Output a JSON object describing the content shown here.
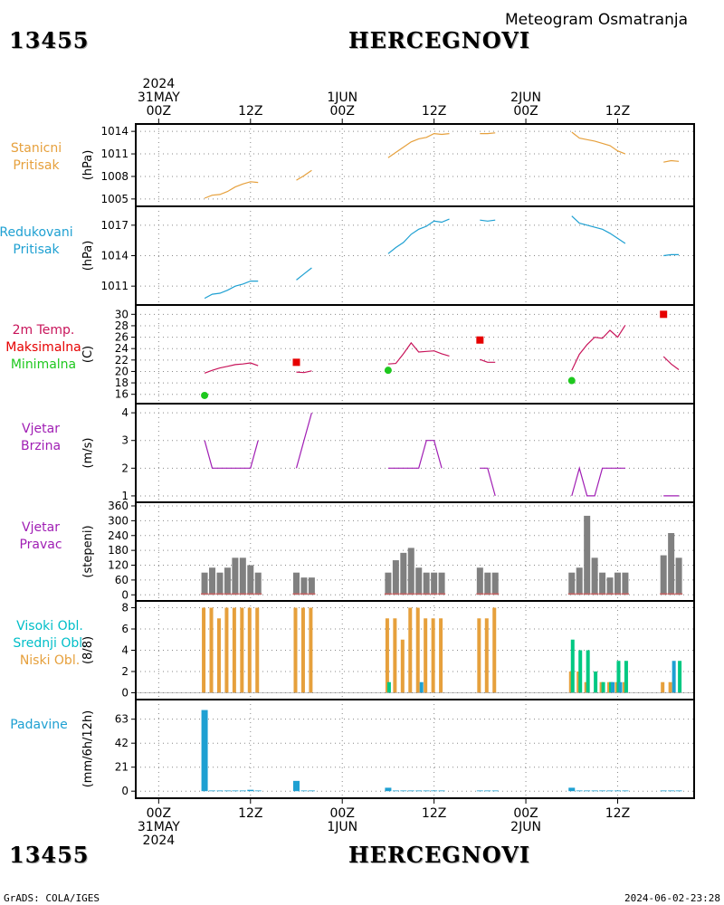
{
  "header": {
    "station_id": "13455",
    "station_name": "HERCEGNOVI",
    "subtitle": "Meteogram Osmatranja"
  },
  "footer": {
    "station_id": "13455",
    "station_name": "HERCEGNOVI",
    "left": "GrADS: COLA/IGES",
    "right": "2024-06-02-23:28"
  },
  "time_axis": {
    "ticks_top": [
      {
        "t": 0,
        "lines": [
          "2024",
          "31MAY",
          "00Z"
        ]
      },
      {
        "t": 12,
        "lines": [
          "12Z"
        ]
      },
      {
        "t": 24,
        "lines": [
          "1JUN",
          "00Z"
        ]
      },
      {
        "t": 36,
        "lines": [
          "12Z"
        ]
      },
      {
        "t": 48,
        "lines": [
          "2JUN",
          "00Z"
        ]
      },
      {
        "t": 60,
        "lines": [
          "12Z"
        ]
      }
    ],
    "ticks_bottom": [
      {
        "t": 0,
        "lines": [
          "00Z",
          "31MAY",
          "2024"
        ]
      },
      {
        "t": 12,
        "lines": [
          "12Z"
        ]
      },
      {
        "t": 24,
        "lines": [
          "00Z",
          "1JUN"
        ]
      },
      {
        "t": 36,
        "lines": [
          "12Z"
        ]
      },
      {
        "t": 48,
        "lines": [
          "00Z",
          "2JUN"
        ]
      },
      {
        "t": 60,
        "lines": [
          "12Z"
        ]
      }
    ],
    "range_hours": [
      -3,
      70
    ]
  },
  "panel_labels": {
    "pressure_station": {
      "lines": [
        "Stanicni",
        "Pritisak"
      ],
      "color": "#e6a03c"
    },
    "pressure_reduced": {
      "lines": [
        "Redukovani",
        "Pritisak"
      ],
      "color": "#1ea0d2"
    },
    "temperature": {
      "lines": [
        {
          "text": "2m Temp.",
          "color": "#c8145a"
        },
        {
          "text": "Maksimalna",
          "color": "#e60000"
        },
        {
          "text": "Minimalna",
          "color": "#1ec81e"
        }
      ]
    },
    "wind_speed": {
      "lines": [
        "Vjetar",
        "Brzina"
      ],
      "color": "#a01eb4"
    },
    "wind_direction": {
      "lines": [
        "Vjetar",
        "Pravac"
      ],
      "color": "#a01eb4"
    },
    "clouds": {
      "lines": [
        {
          "text": "Visoki Obl.",
          "color": "#00bec8"
        },
        {
          "text": "Srednji Obl.",
          "color": "#00c882"
        },
        {
          "text": "Niski Obl.",
          "color": "#e6a03c"
        }
      ]
    },
    "precip": {
      "lines": [
        "Padavine"
      ],
      "color": "#1ea0d2"
    }
  },
  "chart_data": [
    {
      "id": "pressure_station",
      "type": "line",
      "ylabel": "(hPa)",
      "ylim": [
        1004.5,
        1014.5
      ],
      "yticks": [
        1005,
        1008,
        1011,
        1014
      ],
      "color": "#e6a03c",
      "segments": [
        [
          [
            6,
            1005.1
          ],
          [
            7,
            1005.5
          ],
          [
            8,
            1005.6
          ],
          [
            9,
            1006.0
          ],
          [
            10,
            1006.6
          ],
          [
            11,
            1007.0
          ],
          [
            12,
            1007.3
          ],
          [
            13,
            1007.2
          ]
        ],
        [
          [
            18,
            1007.5
          ],
          [
            19,
            1008.1
          ],
          [
            20,
            1008.8
          ]
        ],
        [
          [
            30,
            1010.5
          ],
          [
            31,
            1011.2
          ],
          [
            32,
            1011.9
          ],
          [
            33,
            1012.6
          ],
          [
            34,
            1013.0
          ],
          [
            35,
            1013.2
          ],
          [
            36,
            1013.7
          ],
          [
            37,
            1013.6
          ],
          [
            38,
            1013.7
          ]
        ],
        [
          [
            42,
            1013.7
          ],
          [
            43,
            1013.7
          ],
          [
            44,
            1013.8
          ]
        ],
        [
          [
            54,
            1013.9
          ],
          [
            55,
            1013.1
          ],
          [
            56,
            1012.9
          ],
          [
            57,
            1012.7
          ],
          [
            58,
            1012.4
          ],
          [
            59,
            1012.1
          ],
          [
            60,
            1011.4
          ],
          [
            61,
            1011.0
          ]
        ],
        [
          [
            66,
            1009.9
          ],
          [
            67,
            1010.1
          ],
          [
            68,
            1010.0
          ]
        ]
      ]
    },
    {
      "id": "pressure_reduced",
      "type": "line",
      "ylabel": "(hPa)",
      "ylim": [
        1009.5,
        1018.5
      ],
      "yticks": [
        1011,
        1014,
        1017
      ],
      "color": "#1ea0d2",
      "segments": [
        [
          [
            6,
            1009.8
          ],
          [
            7,
            1010.2
          ],
          [
            8,
            1010.3
          ],
          [
            9,
            1010.6
          ],
          [
            10,
            1011.0
          ],
          [
            11,
            1011.2
          ],
          [
            12,
            1011.5
          ],
          [
            13,
            1011.5
          ]
        ],
        [
          [
            18,
            1011.6
          ],
          [
            19,
            1012.2
          ],
          [
            20,
            1012.8
          ]
        ],
        [
          [
            30,
            1014.2
          ],
          [
            31,
            1014.8
          ],
          [
            32,
            1015.3
          ],
          [
            33,
            1016.1
          ],
          [
            34,
            1016.6
          ],
          [
            35,
            1016.9
          ],
          [
            36,
            1017.4
          ],
          [
            37,
            1017.3
          ],
          [
            38,
            1017.6
          ]
        ],
        [
          [
            42,
            1017.5
          ],
          [
            43,
            1017.4
          ],
          [
            44,
            1017.5
          ]
        ],
        [
          [
            54,
            1017.9
          ],
          [
            55,
            1017.2
          ],
          [
            56,
            1017.0
          ],
          [
            57,
            1016.8
          ],
          [
            58,
            1016.6
          ],
          [
            59,
            1016.2
          ],
          [
            60,
            1015.7
          ],
          [
            61,
            1015.2
          ]
        ],
        [
          [
            66,
            1014.0
          ],
          [
            67,
            1014.1
          ],
          [
            68,
            1014.1
          ]
        ]
      ]
    },
    {
      "id": "temperature",
      "type": "line",
      "ylabel": "(C)",
      "ylim": [
        15,
        31
      ],
      "yticks": [
        16,
        18,
        20,
        22,
        24,
        26,
        28,
        30
      ],
      "color": "#c8145a",
      "segments": [
        [
          [
            6,
            19.7
          ],
          [
            7,
            20.2
          ],
          [
            8,
            20.6
          ],
          [
            9,
            20.9
          ],
          [
            10,
            21.2
          ],
          [
            11,
            21.3
          ],
          [
            12,
            21.5
          ],
          [
            13,
            21.0
          ]
        ],
        [
          [
            18,
            19.9
          ],
          [
            19,
            19.8
          ],
          [
            20,
            20.1
          ]
        ],
        [
          [
            30,
            21.3
          ],
          [
            31,
            21.4
          ],
          [
            32,
            23.1
          ],
          [
            33,
            25.0
          ],
          [
            34,
            23.4
          ],
          [
            35,
            23.5
          ],
          [
            36,
            23.6
          ],
          [
            37,
            23.1
          ],
          [
            38,
            22.7
          ]
        ],
        [
          [
            42,
            22.1
          ],
          [
            43,
            21.6
          ],
          [
            44,
            21.6
          ]
        ],
        [
          [
            54,
            20.2
          ],
          [
            55,
            23.0
          ],
          [
            56,
            24.7
          ],
          [
            57,
            26.0
          ],
          [
            58,
            25.8
          ],
          [
            59,
            27.2
          ],
          [
            60,
            26.0
          ],
          [
            61,
            28.1
          ]
        ],
        [
          [
            66,
            22.6
          ],
          [
            67,
            21.3
          ],
          [
            68,
            20.3
          ]
        ]
      ],
      "max_points": [
        {
          "t": 18,
          "v": 21.6,
          "color": "#e60000"
        },
        {
          "t": 42,
          "v": 25.5,
          "color": "#e60000"
        },
        {
          "t": 66,
          "v": 30.0,
          "color": "#e60000"
        }
      ],
      "min_points": [
        {
          "t": 6,
          "v": 15.8,
          "color": "#1ec81e"
        },
        {
          "t": 30,
          "v": 20.2,
          "color": "#1ec81e"
        },
        {
          "t": 54,
          "v": 18.4,
          "color": "#1ec81e"
        }
      ]
    },
    {
      "id": "wind_speed",
      "type": "line",
      "ylabel": "(m/s)",
      "ylim": [
        0.9,
        4.2
      ],
      "yticks": [
        1,
        2,
        3,
        4
      ],
      "color": "#a01eb4",
      "segments": [
        [
          [
            6,
            3
          ],
          [
            7,
            2
          ],
          [
            8,
            2
          ],
          [
            9,
            2
          ],
          [
            10,
            2
          ],
          [
            11,
            2
          ],
          [
            12,
            2
          ],
          [
            13,
            3
          ]
        ],
        [
          [
            18,
            2
          ],
          [
            19,
            3
          ],
          [
            20,
            4
          ]
        ],
        [
          [
            30,
            2
          ],
          [
            31,
            2
          ],
          [
            32,
            2
          ],
          [
            33,
            2
          ],
          [
            34,
            2
          ],
          [
            35,
            3
          ],
          [
            36,
            3
          ],
          [
            37,
            2
          ]
        ],
        [
          [
            42,
            2
          ],
          [
            43,
            2
          ],
          [
            44,
            1
          ]
        ],
        [
          [
            54,
            1
          ],
          [
            55,
            2
          ],
          [
            56,
            1
          ],
          [
            57,
            1
          ],
          [
            58,
            2
          ],
          [
            59,
            2
          ],
          [
            60,
            2
          ],
          [
            61,
            2
          ]
        ],
        [
          [
            66,
            1
          ],
          [
            67,
            1
          ],
          [
            68,
            1
          ]
        ]
      ]
    },
    {
      "id": "wind_direction",
      "type": "bar",
      "ylabel": "(stepeni)",
      "ylim": [
        -10,
        360
      ],
      "yticks": [
        0,
        60,
        120,
        180,
        240,
        300,
        360
      ],
      "color": "#808080",
      "baseline_color": "#c86464",
      "t": [
        6,
        7,
        8,
        9,
        10,
        11,
        12,
        13,
        18,
        19,
        20,
        30,
        31,
        32,
        33,
        34,
        35,
        36,
        37,
        42,
        43,
        44,
        54,
        55,
        56,
        57,
        58,
        59,
        60,
        61,
        66,
        67,
        68
      ],
      "values": [
        90,
        110,
        90,
        110,
        150,
        150,
        120,
        90,
        90,
        70,
        70,
        90,
        140,
        170,
        190,
        110,
        90,
        90,
        90,
        110,
        90,
        90,
        90,
        110,
        320,
        150,
        90,
        70,
        90,
        90,
        160,
        250,
        150
      ]
    },
    {
      "id": "clouds",
      "type": "bar",
      "ylabel": "(8/8)",
      "ylim": [
        -0.3,
        8.3
      ],
      "yticks": [
        0,
        2,
        4,
        6,
        8
      ],
      "series": [
        {
          "name": "Niski Obl.",
          "color": "#e6a03c",
          "t": [
            6,
            7,
            8,
            9,
            10,
            11,
            12,
            13,
            18,
            19,
            20,
            30,
            31,
            32,
            33,
            34,
            35,
            36,
            37,
            42,
            43,
            44,
            54,
            55,
            56,
            57,
            58,
            59,
            60,
            61,
            66,
            67,
            68
          ],
          "values": [
            8,
            8,
            7,
            8,
            8,
            8,
            8,
            8,
            8,
            8,
            8,
            7,
            7,
            5,
            8,
            8,
            7,
            7,
            7,
            7,
            7,
            8,
            2,
            2,
            1,
            0,
            1,
            1,
            1,
            1,
            1,
            1,
            0
          ]
        },
        {
          "name": "Srednji Obl.",
          "color": "#00c882",
          "t": [
            6,
            7,
            8,
            9,
            10,
            11,
            12,
            13,
            18,
            19,
            20,
            30,
            31,
            32,
            33,
            34,
            35,
            36,
            37,
            42,
            43,
            44,
            54,
            55,
            56,
            57,
            58,
            59,
            60,
            61,
            66,
            67,
            68
          ],
          "values": [
            0,
            0,
            0,
            0,
            0,
            0,
            0,
            0,
            0,
            0,
            0,
            1,
            0,
            0,
            0,
            0,
            0,
            0,
            0,
            0,
            0,
            0,
            5,
            4,
            4,
            2,
            1,
            1,
            3,
            3,
            0,
            0,
            3
          ]
        },
        {
          "name": "Visoki Obl.",
          "color": "#1ea0d2",
          "t": [
            6,
            7,
            8,
            9,
            10,
            11,
            12,
            13,
            18,
            19,
            20,
            30,
            31,
            32,
            33,
            34,
            35,
            36,
            37,
            42,
            43,
            44,
            54,
            55,
            56,
            57,
            58,
            59,
            60,
            61,
            66,
            67,
            68
          ],
          "values": [
            0,
            0,
            0,
            0,
            0,
            0,
            0,
            0,
            0,
            0,
            0,
            0,
            0,
            0,
            0,
            1,
            0,
            0,
            0,
            0,
            0,
            0,
            0,
            0,
            0,
            0,
            0,
            1,
            1,
            0,
            0,
            3,
            0
          ]
        }
      ]
    },
    {
      "id": "precip",
      "type": "bar",
      "ylabel": "(mm/6h/12h)",
      "ylim": [
        -3,
        77
      ],
      "yticks": [
        0,
        21,
        42,
        63
      ],
      "color": "#1ea0d2",
      "t": [
        6,
        7,
        8,
        9,
        10,
        11,
        12,
        13,
        18,
        19,
        20,
        30,
        31,
        32,
        33,
        34,
        35,
        36,
        37,
        42,
        43,
        44,
        54,
        55,
        56,
        57,
        58,
        59,
        60,
        61,
        66,
        67,
        68
      ],
      "values": [
        71,
        0.6,
        0.6,
        0.6,
        0.6,
        0.6,
        1.2,
        0.6,
        9,
        0.6,
        0.6,
        3,
        0.6,
        0.6,
        0.6,
        0.6,
        0.6,
        0.6,
        0.6,
        0.6,
        0.6,
        0.6,
        3,
        0.6,
        0.6,
        0.6,
        0.6,
        0.6,
        0.6,
        0.6,
        0.6,
        0.6,
        0.6
      ]
    }
  ]
}
